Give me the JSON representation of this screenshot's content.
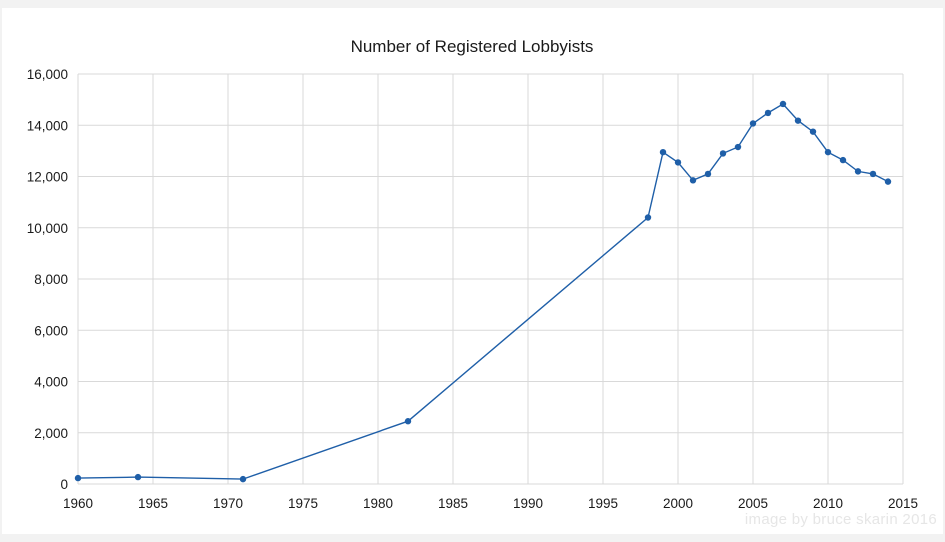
{
  "chart_data": {
    "type": "line",
    "title": "Number of Registered Lobbyists",
    "xlabel": "",
    "ylabel": "",
    "xlim": [
      1960,
      2015
    ],
    "ylim": [
      0,
      16000
    ],
    "x_ticks": [
      1960,
      1965,
      1970,
      1975,
      1980,
      1985,
      1990,
      1995,
      2000,
      2005,
      2010,
      2015
    ],
    "x_tick_labels": [
      "1960",
      "1965",
      "1970",
      "1975",
      "1980",
      "1985",
      "1990",
      "1995",
      "2000",
      "2005",
      "2010",
      "2015"
    ],
    "y_ticks": [
      0,
      2000,
      4000,
      6000,
      8000,
      10000,
      12000,
      14000,
      16000
    ],
    "y_tick_labels": [
      "0",
      "2,000",
      "4,000",
      "6,000",
      "8,000",
      "10,000",
      "12,000",
      "14,000",
      "16,000"
    ],
    "grid": true,
    "legend": "none",
    "series": [
      {
        "color": "#1f5fa8",
        "x": [
          1960,
          1964,
          1971,
          1982,
          1998,
          1999,
          2000,
          2001,
          2002,
          2003,
          2004,
          2005,
          2006,
          2007,
          2008,
          2009,
          2010,
          2011,
          2012,
          2013,
          2014
        ],
        "y": [
          230,
          270,
          190,
          2450,
          10400,
          12950,
          12550,
          11850,
          12100,
          12900,
          13150,
          14070,
          14480,
          14830,
          14180,
          13750,
          12950,
          12640,
          12200,
          12100,
          11800
        ]
      }
    ]
  },
  "watermark": "image by bruce skarin 2016"
}
